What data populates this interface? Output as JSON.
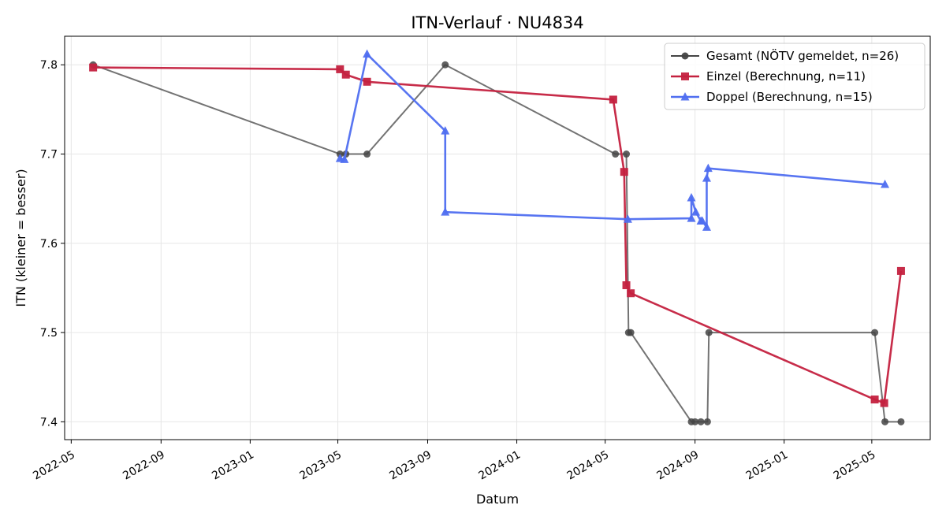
{
  "chart_data": {
    "type": "line",
    "title": "ITN-Verlauf · NU4834",
    "xlabel": "Datum",
    "ylabel": "ITN  (kleiner = besser)",
    "x_axis_type": "date",
    "xlim": [
      "2022-04-22",
      "2025-07-20"
    ],
    "ylim": [
      7.38,
      7.832
    ],
    "x_ticks": [
      {
        "date": "2022-05-01",
        "label": "2022-05"
      },
      {
        "date": "2022-09-01",
        "label": "2022-09"
      },
      {
        "date": "2023-01-01",
        "label": "2023-01"
      },
      {
        "date": "2023-05-01",
        "label": "2023-05"
      },
      {
        "date": "2023-09-01",
        "label": "2023-09"
      },
      {
        "date": "2024-01-01",
        "label": "2024-01"
      },
      {
        "date": "2024-05-01",
        "label": "2024-05"
      },
      {
        "date": "2024-09-01",
        "label": "2024-09"
      },
      {
        "date": "2025-01-01",
        "label": "2025-01"
      },
      {
        "date": "2025-05-01",
        "label": "2025-05"
      }
    ],
    "y_ticks": [
      7.4,
      7.5,
      7.6,
      7.7,
      7.8
    ],
    "y_tick_labels": [
      "7.4",
      "7.5",
      "7.6",
      "7.7",
      "7.8"
    ],
    "grid": true,
    "legend_position": "top-right",
    "series": [
      {
        "name": "Gesamt (NÖTV gemeldet, n=26)",
        "color": "#444444",
        "marker": "circle",
        "points": [
          {
            "x": "2022-05-31",
            "y": 7.8
          },
          {
            "x": "2023-05-04",
            "y": 7.7
          },
          {
            "x": "2023-05-12",
            "y": 7.7
          },
          {
            "x": "2023-06-10",
            "y": 7.7
          },
          {
            "x": "2023-09-25",
            "y": 7.8
          },
          {
            "x": "2024-05-15",
            "y": 7.7
          },
          {
            "x": "2024-05-30",
            "y": 7.7
          },
          {
            "x": "2024-06-02",
            "y": 7.5
          },
          {
            "x": "2024-06-05",
            "y": 7.5
          },
          {
            "x": "2024-08-27",
            "y": 7.4
          },
          {
            "x": "2024-09-01",
            "y": 7.4
          },
          {
            "x": "2024-09-09",
            "y": 7.4
          },
          {
            "x": "2024-09-18",
            "y": 7.4
          },
          {
            "x": "2024-09-20",
            "y": 7.5
          },
          {
            "x": "2025-05-05",
            "y": 7.5
          },
          {
            "x": "2025-05-19",
            "y": 7.4
          },
          {
            "x": "2025-06-10",
            "y": 7.4
          }
        ]
      },
      {
        "name": "Einzel (Berechnung, n=11)",
        "color": "#c4213f",
        "marker": "square",
        "points": [
          {
            "x": "2022-05-31",
            "y": 7.797
          },
          {
            "x": "2023-05-04",
            "y": 7.795
          },
          {
            "x": "2023-05-12",
            "y": 7.789
          },
          {
            "x": "2023-06-10",
            "y": 7.781
          },
          {
            "x": "2024-05-12",
            "y": 7.761
          },
          {
            "x": "2024-05-27",
            "y": 7.68
          },
          {
            "x": "2024-05-30",
            "y": 7.553
          },
          {
            "x": "2024-06-05",
            "y": 7.544
          },
          {
            "x": "2025-05-05",
            "y": 7.425
          },
          {
            "x": "2025-05-18",
            "y": 7.421
          },
          {
            "x": "2025-06-10",
            "y": 7.569
          }
        ]
      },
      {
        "name": "Doppel (Berechnung, n=15)",
        "color": "#4f6ef0",
        "marker": "triangle",
        "points": [
          {
            "x": "2023-05-04",
            "y": 7.695
          },
          {
            "x": "2023-05-10",
            "y": 7.694
          },
          {
            "x": "2023-06-10",
            "y": 7.812
          },
          {
            "x": "2023-09-25",
            "y": 7.726
          },
          {
            "x": "2023-09-25",
            "y": 7.635
          },
          {
            "x": "2024-06-01",
            "y": 7.627
          },
          {
            "x": "2024-08-27",
            "y": 7.628
          },
          {
            "x": "2024-08-27",
            "y": 7.651
          },
          {
            "x": "2024-09-02",
            "y": 7.635
          },
          {
            "x": "2024-09-09",
            "y": 7.625
          },
          {
            "x": "2024-09-11",
            "y": 7.625
          },
          {
            "x": "2024-09-17",
            "y": 7.618
          },
          {
            "x": "2024-09-17",
            "y": 7.673
          },
          {
            "x": "2024-09-19",
            "y": 7.684
          },
          {
            "x": "2025-05-19",
            "y": 7.666
          }
        ]
      }
    ]
  }
}
